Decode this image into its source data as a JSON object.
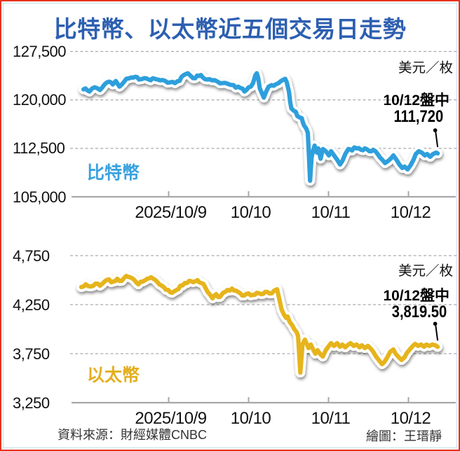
{
  "title": "比特幣、以太幣近五個交易日走勢",
  "unit_label": "美元／枚",
  "footer": {
    "source": "資料來源：財經媒體CNBC",
    "credit": "繪圖：王瑨靜"
  },
  "colors": {
    "title": "#2d5fb0",
    "bitcoin_line": "#2f9fdc",
    "ether_line": "#e6b41e",
    "border_outer": "#e8321e",
    "border_inner": "#bfe4f2"
  },
  "chart_data": [
    {
      "type": "line",
      "name": "bitcoin",
      "label": "比特幣",
      "unit": "美元／枚",
      "color": "#2f9fdc",
      "ylim": [
        105000,
        127500
      ],
      "y_ticks": [
        127500,
        120000,
        112500,
        105000
      ],
      "y_tick_labels": [
        "127,500",
        "120,000",
        "112,500",
        "105,000"
      ],
      "x_tick_labels": [
        "2025/10/9",
        "10/10",
        "10/11",
        "10/12"
      ],
      "x_tick_days": [
        1,
        2,
        3,
        4
      ],
      "grid": "dashed horizontal",
      "annotation": {
        "line1": "10/12盤中",
        "line2": "111,720",
        "day": 4.365,
        "value": 111720
      },
      "points": [
        [
          -0.065,
          121630
        ],
        [
          0.01,
          121300
        ],
        [
          0.076,
          121960
        ],
        [
          0.141,
          121520
        ],
        [
          0.198,
          122390
        ],
        [
          0.254,
          122830
        ],
        [
          0.301,
          122390
        ],
        [
          0.339,
          122930
        ],
        [
          0.385,
          122060
        ],
        [
          0.423,
          122500
        ],
        [
          0.47,
          123260
        ],
        [
          0.536,
          123480
        ],
        [
          0.583,
          123590
        ],
        [
          0.629,
          123150
        ],
        [
          0.695,
          123370
        ],
        [
          0.751,
          123150
        ],
        [
          0.827,
          123260
        ],
        [
          0.892,
          123040
        ],
        [
          0.958,
          122930
        ],
        [
          1.014,
          122710
        ],
        [
          1.08,
          122600
        ],
        [
          1.136,
          122930
        ],
        [
          1.183,
          123800
        ],
        [
          1.24,
          124130
        ],
        [
          1.277,
          123700
        ],
        [
          1.333,
          123370
        ],
        [
          1.38,
          123700
        ],
        [
          1.427,
          123480
        ],
        [
          1.484,
          123150
        ],
        [
          1.54,
          123040
        ],
        [
          1.615,
          122820
        ],
        [
          1.671,
          122600
        ],
        [
          1.737,
          122500
        ],
        [
          1.812,
          122280
        ],
        [
          1.868,
          122060
        ],
        [
          1.925,
          121740
        ],
        [
          1.972,
          121520
        ],
        [
          2.028,
          122060
        ],
        [
          2.056,
          122600
        ],
        [
          2.084,
          123800
        ],
        [
          2.103,
          124130
        ],
        [
          2.12,
          123400
        ],
        [
          2.14,
          121800
        ],
        [
          2.19,
          120350
        ],
        [
          2.22,
          121300
        ],
        [
          2.25,
          122050
        ],
        [
          2.289,
          122300
        ],
        [
          2.338,
          122390
        ],
        [
          2.375,
          122600
        ],
        [
          2.422,
          123040
        ],
        [
          2.459,
          123260
        ],
        [
          2.478,
          122710
        ],
        [
          2.506,
          121200
        ],
        [
          2.52,
          119700
        ],
        [
          2.535,
          118700
        ],
        [
          2.563,
          118350
        ],
        [
          2.591,
          118150
        ],
        [
          2.61,
          117500
        ],
        [
          2.638,
          117300
        ],
        [
          2.666,
          117150
        ],
        [
          2.68,
          116500
        ],
        [
          2.694,
          116050
        ],
        [
          2.708,
          115800
        ],
        [
          2.722,
          115550
        ],
        [
          2.741,
          114880
        ],
        [
          2.75,
          112710
        ],
        [
          2.769,
          107490
        ],
        [
          2.788,
          111080
        ],
        [
          2.807,
          112170
        ],
        [
          2.826,
          112930
        ],
        [
          2.854,
          111840
        ],
        [
          2.872,
          112490
        ],
        [
          2.901,
          110900
        ],
        [
          2.929,
          112390
        ],
        [
          2.966,
          112060
        ],
        [
          3.004,
          111410
        ],
        [
          3.032,
          112060
        ],
        [
          3.069,
          111410
        ],
        [
          3.107,
          110760
        ],
        [
          3.144,
          110000
        ],
        [
          3.173,
          110540
        ],
        [
          3.21,
          111630
        ],
        [
          3.248,
          112390
        ],
        [
          3.295,
          112170
        ],
        [
          3.351,
          112490
        ],
        [
          3.407,
          112280
        ],
        [
          3.454,
          112490
        ],
        [
          3.511,
          112060
        ],
        [
          3.558,
          112280
        ],
        [
          3.614,
          111630
        ],
        [
          3.67,
          110760
        ],
        [
          3.708,
          110220
        ],
        [
          3.745,
          110540
        ],
        [
          3.783,
          110980
        ],
        [
          3.811,
          111410
        ],
        [
          3.848,
          110760
        ],
        [
          3.886,
          110000
        ],
        [
          3.923,
          109460
        ],
        [
          3.952,
          109670
        ],
        [
          3.989,
          109240
        ],
        [
          4.027,
          109890
        ],
        [
          4.064,
          110760
        ],
        [
          4.092,
          111630
        ],
        [
          4.13,
          112060
        ],
        [
          4.167,
          111840
        ],
        [
          4.205,
          111410
        ],
        [
          4.233,
          111630
        ],
        [
          4.271,
          111190
        ],
        [
          4.308,
          111630
        ],
        [
          4.346,
          111840
        ],
        [
          4.365,
          111720
        ]
      ]
    },
    {
      "type": "line",
      "name": "ether",
      "label": "以太幣",
      "unit": "美元／枚",
      "color": "#e6b41e",
      "ylim": [
        3250,
        4750
      ],
      "y_ticks": [
        4750,
        4250,
        3750,
        3250
      ],
      "y_tick_labels": [
        "4,750",
        "4,250",
        "3,750",
        "3,250"
      ],
      "x_tick_labels": [
        "2025/10/9",
        "10/10",
        "10/11",
        "10/12"
      ],
      "x_tick_days": [
        1,
        2,
        3,
        4
      ],
      "grid": "dashed horizontal",
      "annotation": {
        "line1": "10/12盤中",
        "line2": "3,819.50",
        "day": 4.365,
        "value": 3819.5
      },
      "points": [
        [
          -0.093,
          4429
        ],
        [
          -0.037,
          4457
        ],
        [
          0.029,
          4436
        ],
        [
          0.085,
          4464
        ],
        [
          0.141,
          4443
        ],
        [
          0.198,
          4486
        ],
        [
          0.254,
          4507
        ],
        [
          0.31,
          4486
        ],
        [
          0.357,
          4514
        ],
        [
          0.414,
          4493
        ],
        [
          0.47,
          4543
        ],
        [
          0.517,
          4529
        ],
        [
          0.573,
          4500
        ],
        [
          0.62,
          4457
        ],
        [
          0.676,
          4486
        ],
        [
          0.733,
          4514
        ],
        [
          0.78,
          4529
        ],
        [
          0.836,
          4500
        ],
        [
          0.883,
          4457
        ],
        [
          0.939,
          4429
        ],
        [
          0.995,
          4400
        ],
        [
          1.042,
          4371
        ],
        [
          1.099,
          4400
        ],
        [
          1.146,
          4443
        ],
        [
          1.202,
          4471
        ],
        [
          1.258,
          4493
        ],
        [
          1.305,
          4479
        ],
        [
          1.361,
          4500
        ],
        [
          1.408,
          4471
        ],
        [
          1.465,
          4414
        ],
        [
          1.512,
          4357
        ],
        [
          1.549,
          4314
        ],
        [
          1.596,
          4357
        ],
        [
          1.643,
          4329
        ],
        [
          1.681,
          4371
        ],
        [
          1.737,
          4400
        ],
        [
          1.793,
          4414
        ],
        [
          1.84,
          4393
        ],
        [
          1.897,
          4364
        ],
        [
          1.944,
          4343
        ],
        [
          2.0,
          4364
        ],
        [
          2.056,
          4350
        ],
        [
          2.103,
          4371
        ],
        [
          2.159,
          4357
        ],
        [
          2.206,
          4379
        ],
        [
          2.262,
          4364
        ],
        [
          2.319,
          4393
        ],
        [
          2.356,
          4407
        ],
        [
          2.384,
          4307
        ],
        [
          2.413,
          4200
        ],
        [
          2.441,
          4150
        ],
        [
          2.469,
          4114
        ],
        [
          2.488,
          4129
        ],
        [
          2.516,
          4071
        ],
        [
          2.544,
          4043
        ],
        [
          2.572,
          4000
        ],
        [
          2.6,
          3971
        ],
        [
          2.619,
          3929
        ],
        [
          2.647,
          3557
        ],
        [
          2.675,
          3843
        ],
        [
          2.704,
          3893
        ],
        [
          2.732,
          3843
        ],
        [
          2.75,
          3807
        ],
        [
          2.779,
          3843
        ],
        [
          2.807,
          3793
        ],
        [
          2.835,
          3750
        ],
        [
          2.863,
          3786
        ],
        [
          2.891,
          3750
        ],
        [
          2.929,
          3721
        ],
        [
          2.966,
          3786
        ],
        [
          3.004,
          3829
        ],
        [
          3.032,
          3857
        ],
        [
          3.069,
          3829
        ],
        [
          3.107,
          3857
        ],
        [
          3.144,
          3821
        ],
        [
          3.173,
          3843
        ],
        [
          3.21,
          3814
        ],
        [
          3.248,
          3843
        ],
        [
          3.276,
          3857
        ],
        [
          3.314,
          3829
        ],
        [
          3.351,
          3843
        ],
        [
          3.389,
          3814
        ],
        [
          3.417,
          3836
        ],
        [
          3.454,
          3807
        ],
        [
          3.492,
          3829
        ],
        [
          3.529,
          3800
        ],
        [
          3.558,
          3771
        ],
        [
          3.595,
          3721
        ],
        [
          3.633,
          3679
        ],
        [
          3.67,
          3643
        ],
        [
          3.698,
          3664
        ],
        [
          3.736,
          3714
        ],
        [
          3.773,
          3771
        ],
        [
          3.811,
          3793
        ],
        [
          3.839,
          3750
        ],
        [
          3.877,
          3714
        ],
        [
          3.914,
          3686
        ],
        [
          3.952,
          3714
        ],
        [
          3.98,
          3757
        ],
        [
          4.017,
          3793
        ],
        [
          4.055,
          3829
        ],
        [
          4.083,
          3850
        ],
        [
          4.121,
          3829
        ],
        [
          4.158,
          3843
        ],
        [
          4.196,
          3821
        ],
        [
          4.224,
          3843
        ],
        [
          4.261,
          3829
        ],
        [
          4.299,
          3843
        ],
        [
          4.336,
          3836
        ],
        [
          4.365,
          3819.5
        ]
      ]
    }
  ]
}
